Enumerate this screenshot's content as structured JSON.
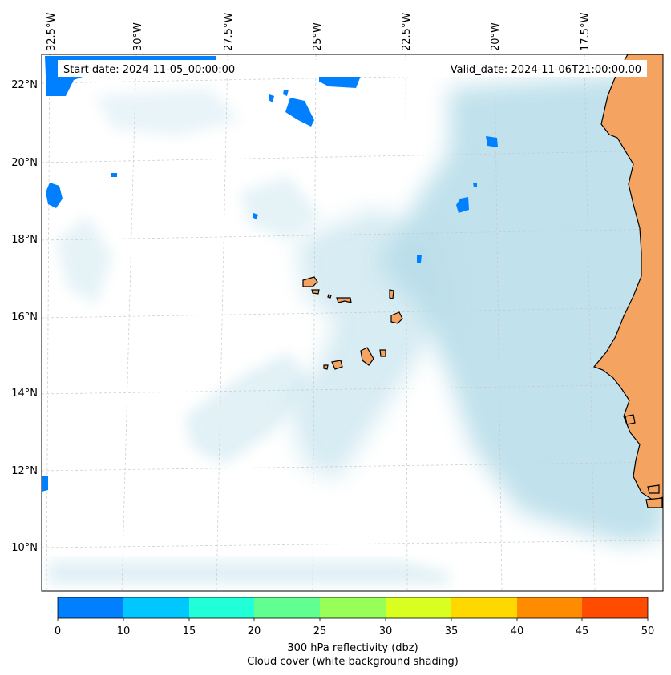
{
  "header": {
    "start_date": "Start date: 2024-11-05_00:00:00",
    "valid_date": "Valid_date: 2024-11-06T21:00:00.00"
  },
  "lon_labels": [
    "32.5°W",
    "30°W",
    "27.5°W",
    "25°W",
    "22.5°W",
    "20°W",
    "17.5°W"
  ],
  "lat_labels": [
    "22°N",
    "20°N",
    "18°N",
    "16°N",
    "14°N",
    "12°N",
    "10°N"
  ],
  "colorbar": {
    "ticks": [
      "0",
      "10",
      "15",
      "20",
      "25",
      "30",
      "35",
      "40",
      "45",
      "50"
    ],
    "colors": [
      "#0080ff",
      "#00c8ff",
      "#20ffd8",
      "#60ff90",
      "#98ff58",
      "#d8ff20",
      "#ffd800",
      "#ff8c00",
      "#ff4c00"
    ],
    "label_line1": "300 hPa reflectivity (dbz)",
    "label_line2": "Cloud cover (white background shading)"
  },
  "colors": {
    "land": "#f4a460",
    "cloud": "#add8e6",
    "reflectivity": "#0080ff",
    "grid": "#c8c8c8"
  }
}
